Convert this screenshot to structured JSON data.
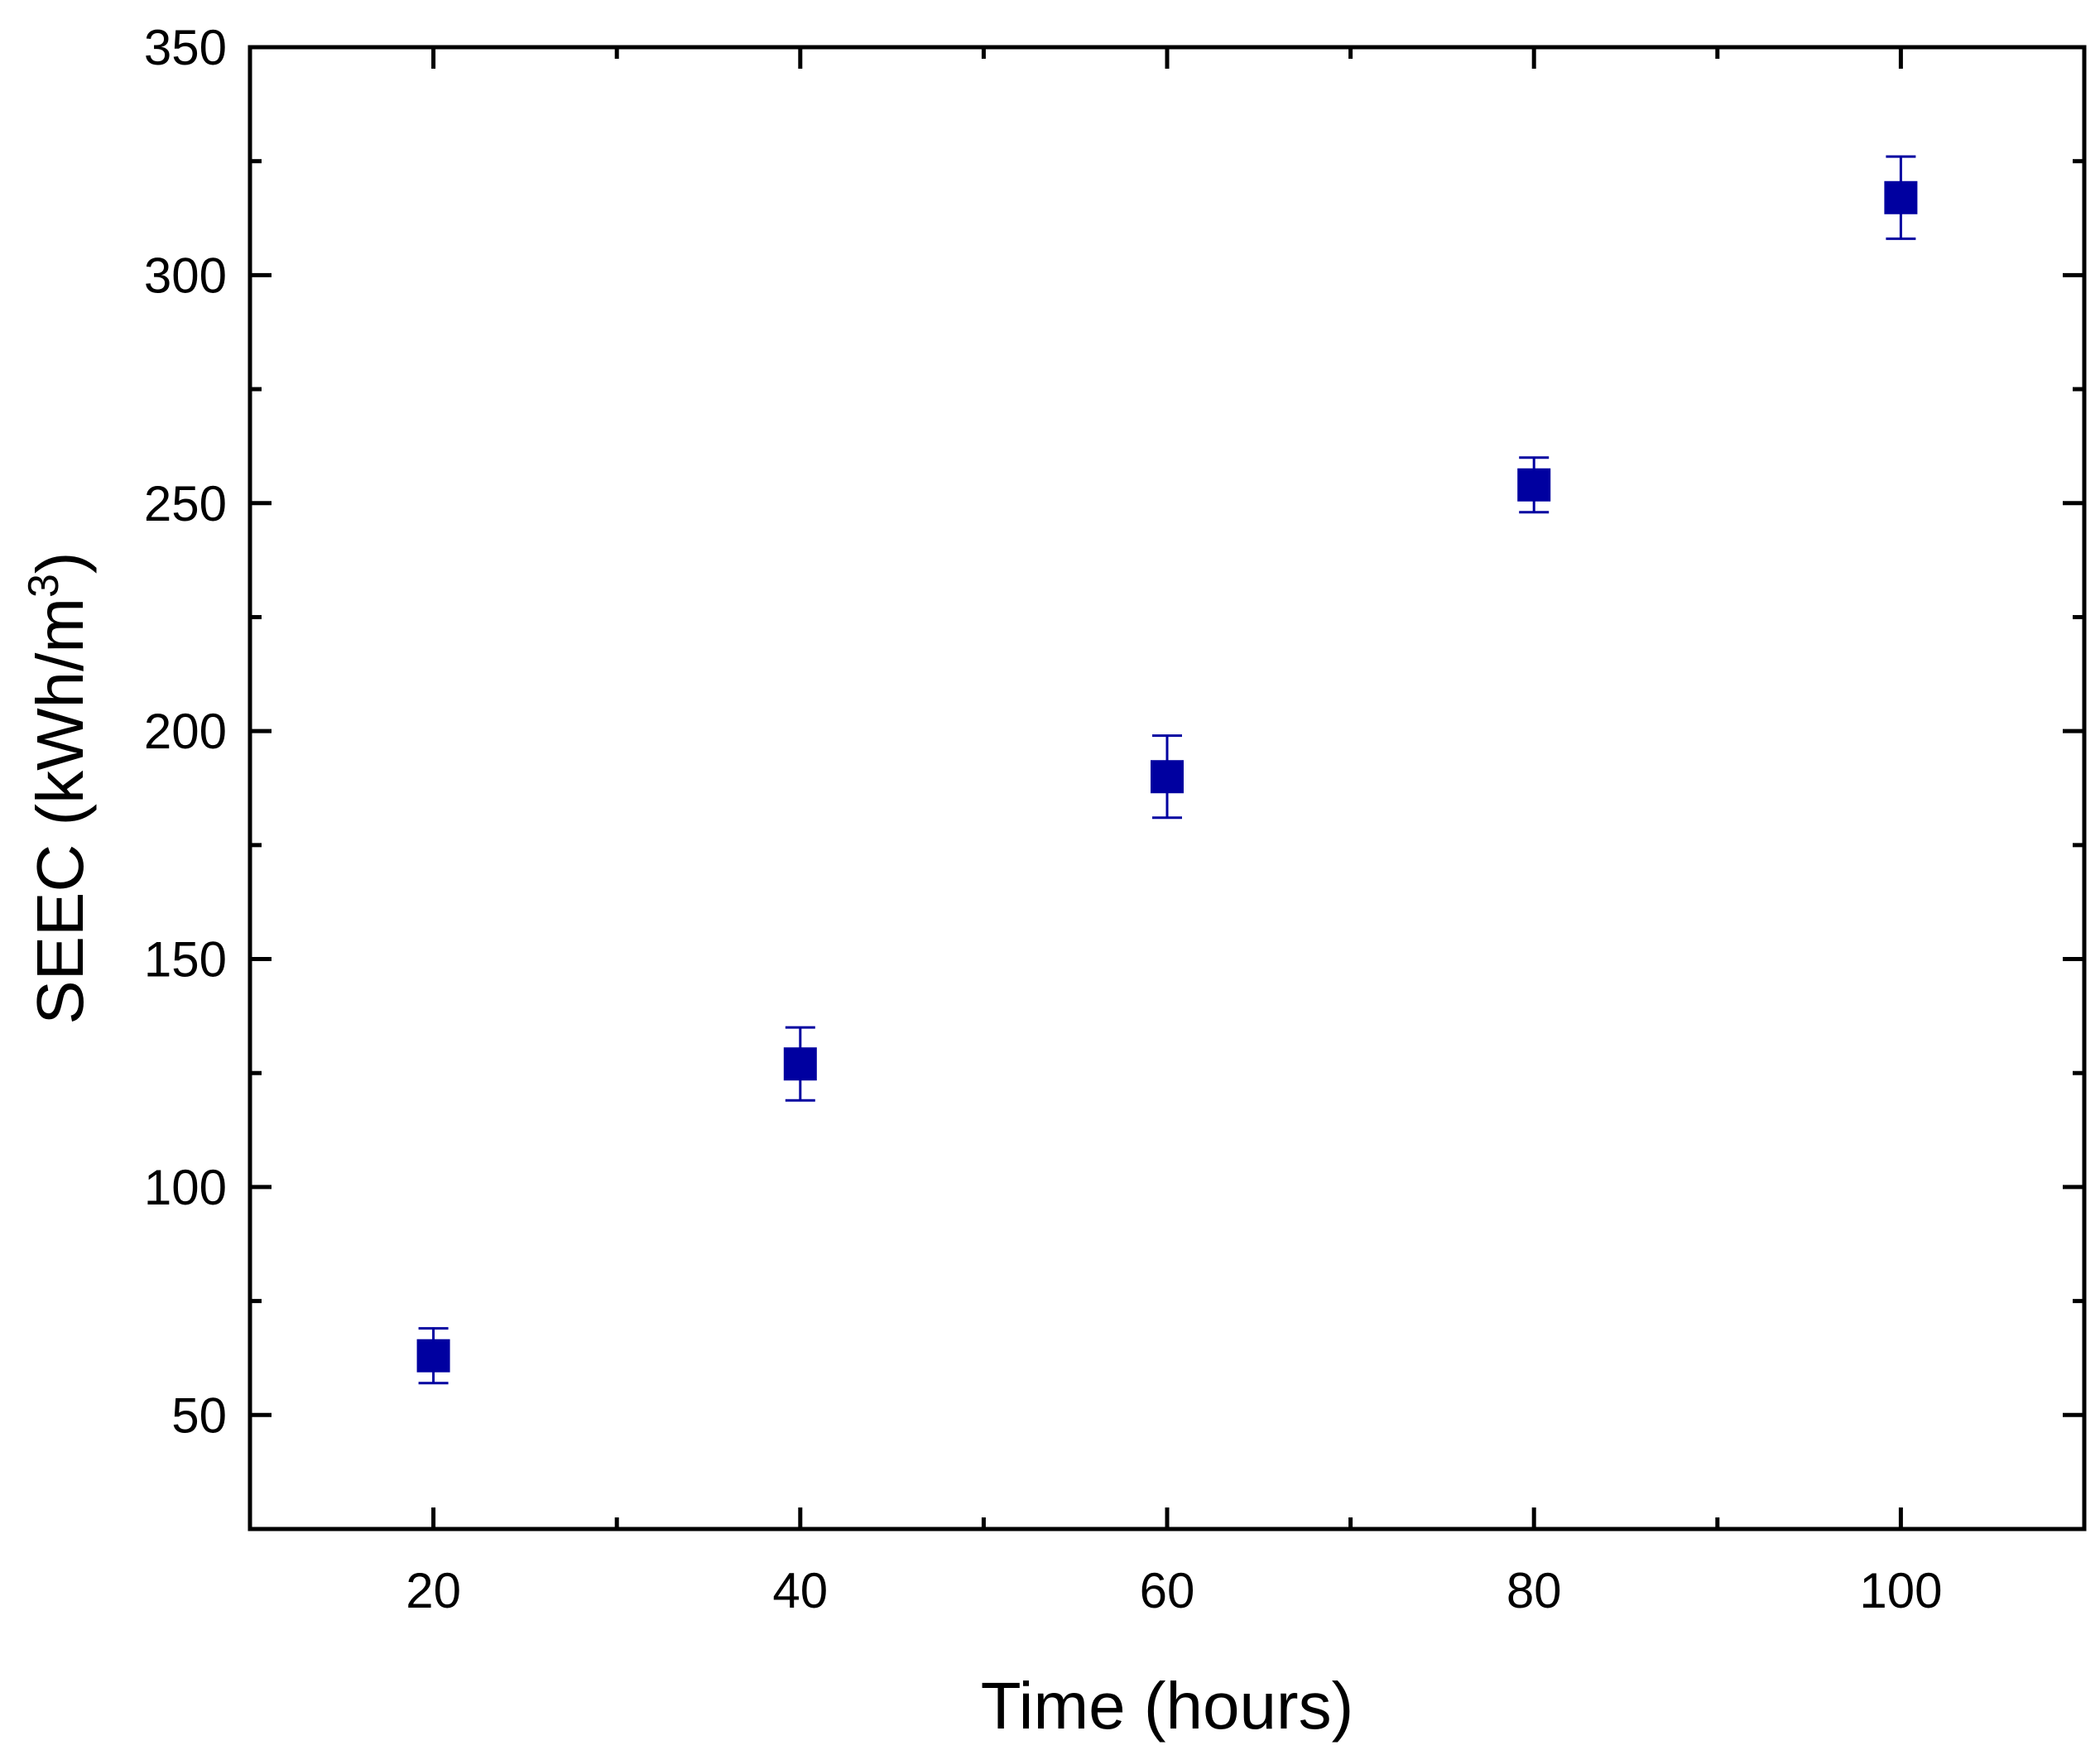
{
  "chart_data": {
    "type": "scatter",
    "title": "",
    "xlabel": "Time (hours)",
    "ylabel_main": "SEEC (kWh/m",
    "ylabel_sup": "3",
    "ylabel_close": ")",
    "xlim": [
      10,
      110
    ],
    "ylim": [
      25,
      350
    ],
    "x_major_ticks": [
      20,
      40,
      60,
      80,
      100
    ],
    "x_minor_ticks": [
      30,
      50,
      70,
      90
    ],
    "y_major_ticks": [
      50,
      100,
      150,
      200,
      250,
      300,
      350
    ],
    "y_minor_ticks": [
      75,
      125,
      175,
      225,
      275,
      325
    ],
    "x_tick_labels": [
      "20",
      "40",
      "60",
      "80",
      "100"
    ],
    "y_tick_labels": [
      "50",
      "100",
      "150",
      "200",
      "250",
      "300",
      "350"
    ],
    "grid": false,
    "legend": "none",
    "marker": "square",
    "color": "#0000a0",
    "series": [
      {
        "x": [
          20,
          40,
          60,
          80,
          100
        ],
        "y": [
          63,
          127,
          190,
          254,
          317
        ],
        "yerr": [
          6,
          8,
          9,
          6,
          9
        ]
      }
    ]
  }
}
